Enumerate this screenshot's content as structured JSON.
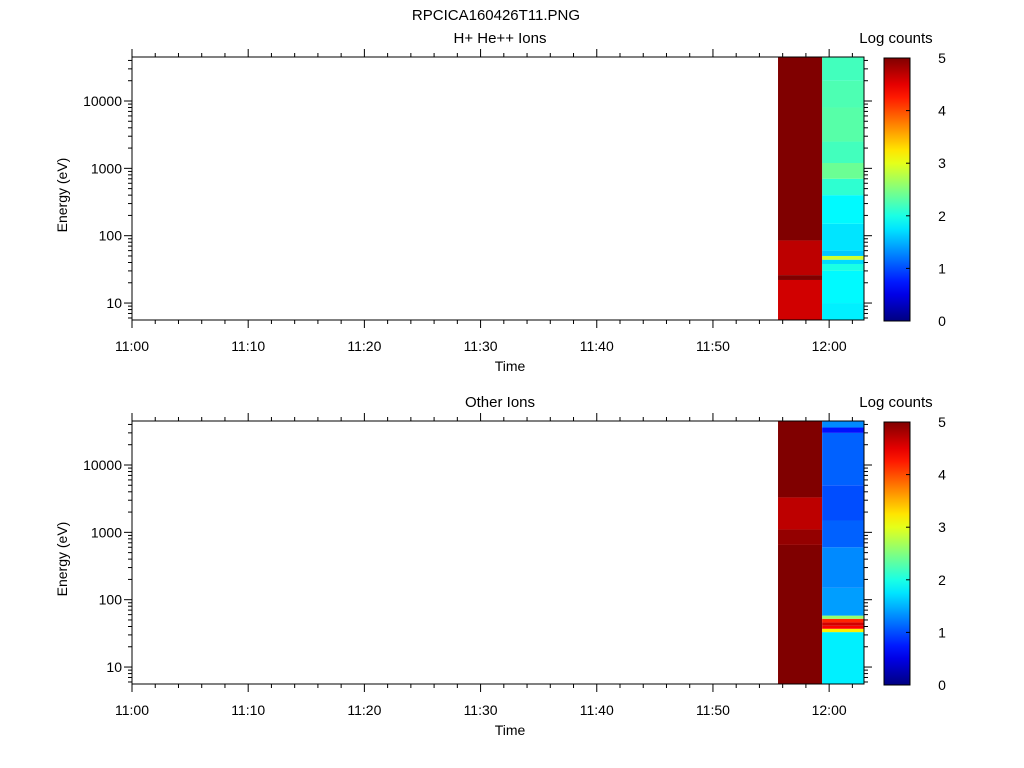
{
  "title": "RPCICA160426T11.PNG",
  "x_axis_label": "Time",
  "y_axis_label": "Energy (eV)",
  "colorbar_label": "Log counts",
  "colorbar_ticks": [
    "0",
    "1",
    "2",
    "3",
    "4",
    "5"
  ],
  "y_tick_labels": [
    "10",
    "100",
    "1000",
    "10000"
  ],
  "x_tick_labels": [
    "11:00",
    "11:10",
    "11:20",
    "11:30",
    "11:40",
    "11:50",
    "12:00"
  ],
  "chart_data": [
    {
      "type": "heatmap",
      "title": "H+ He++ Ions",
      "xlabel": "Time",
      "ylabel": "Energy (eV)",
      "x_range": [
        "11:00",
        "12:03"
      ],
      "y_scale": "log",
      "ylim": [
        5.6,
        45000
      ],
      "color_scale": {
        "label": "Log counts",
        "range": [
          0,
          5
        ],
        "colormap": "jet"
      },
      "columns": [
        {
          "time_start": "11:55.6",
          "time_end": "11:59.4",
          "bins": [
            {
              "e_min": 5.6,
              "e_max": 22,
              "value": 4.6
            },
            {
              "e_min": 22,
              "e_max": 26,
              "value": 5.0
            },
            {
              "e_min": 26,
              "e_max": 85,
              "value": 4.7
            },
            {
              "e_min": 85,
              "e_max": 45000,
              "value": 5.0
            }
          ]
        },
        {
          "time_start": "11:59.4",
          "time_end": "12:03",
          "bins": [
            {
              "e_min": 5.6,
              "e_max": 10,
              "value": 1.8
            },
            {
              "e_min": 10,
              "e_max": 30,
              "value": 1.85
            },
            {
              "e_min": 30,
              "e_max": 38,
              "value": 2.0
            },
            {
              "e_min": 38,
              "e_max": 44,
              "value": 1.7
            },
            {
              "e_min": 44,
              "e_max": 50,
              "value": 2.9
            },
            {
              "e_min": 50,
              "e_max": 60,
              "value": 1.6
            },
            {
              "e_min": 60,
              "e_max": 150,
              "value": 1.75
            },
            {
              "e_min": 150,
              "e_max": 400,
              "value": 1.85
            },
            {
              "e_min": 400,
              "e_max": 700,
              "value": 2.1
            },
            {
              "e_min": 700,
              "e_max": 1200,
              "value": 2.4
            },
            {
              "e_min": 1200,
              "e_max": 2500,
              "value": 2.2
            },
            {
              "e_min": 2500,
              "e_max": 8000,
              "value": 2.3
            },
            {
              "e_min": 8000,
              "e_max": 20000,
              "value": 2.25
            },
            {
              "e_min": 20000,
              "e_max": 45000,
              "value": 2.2
            }
          ]
        }
      ]
    },
    {
      "type": "heatmap",
      "title": "Other Ions",
      "xlabel": "Time",
      "ylabel": "Energy (eV)",
      "x_range": [
        "11:00",
        "12:03"
      ],
      "y_scale": "log",
      "ylim": [
        5.6,
        45000
      ],
      "color_scale": {
        "label": "Log counts",
        "range": [
          0,
          5
        ],
        "colormap": "jet"
      },
      "columns": [
        {
          "time_start": "11:55.6",
          "time_end": "11:59.4",
          "bins": [
            {
              "e_min": 5.6,
              "e_max": 650,
              "value": 5.0
            },
            {
              "e_min": 650,
              "e_max": 1100,
              "value": 4.9
            },
            {
              "e_min": 1100,
              "e_max": 3300,
              "value": 4.7
            },
            {
              "e_min": 3300,
              "e_max": 45000,
              "value": 5.0
            }
          ]
        },
        {
          "time_start": "11:59.4",
          "time_end": "12:03",
          "bins": [
            {
              "e_min": 5.6,
              "e_max": 33,
              "value": 1.8
            },
            {
              "e_min": 33,
              "e_max": 37,
              "value": 3.2
            },
            {
              "e_min": 37,
              "e_max": 41,
              "value": 4.4
            },
            {
              "e_min": 41,
              "e_max": 46,
              "value": 4.6
            },
            {
              "e_min": 46,
              "e_max": 52,
              "value": 4.2
            },
            {
              "e_min": 52,
              "e_max": 58,
              "value": 2.6
            },
            {
              "e_min": 58,
              "e_max": 150,
              "value": 1.4
            },
            {
              "e_min": 150,
              "e_max": 600,
              "value": 1.3
            },
            {
              "e_min": 600,
              "e_max": 1500,
              "value": 1.1
            },
            {
              "e_min": 1500,
              "e_max": 5000,
              "value": 1.0
            },
            {
              "e_min": 5000,
              "e_max": 30000,
              "value": 1.1
            },
            {
              "e_min": 30000,
              "e_max": 36000,
              "value": 0.7
            },
            {
              "e_min": 36000,
              "e_max": 45000,
              "value": 1.3
            }
          ]
        }
      ]
    }
  ]
}
